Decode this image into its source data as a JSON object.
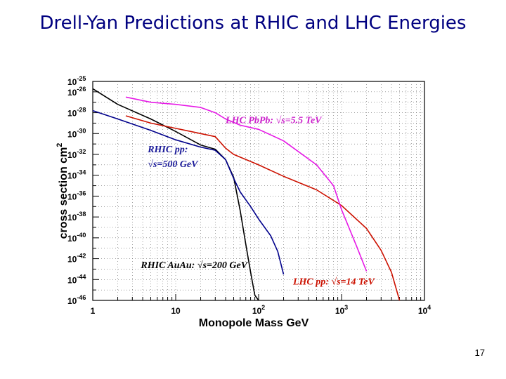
{
  "title": "Drell-Yan Predictions at RHIC and LHC  Energies",
  "page_number": "17",
  "chart_data": {
    "type": "line",
    "title": "",
    "xlabel": "Monopole Mass GeV",
    "ylabel": "cross section cm",
    "ylabel_superscript": "2",
    "x_scale": "log",
    "y_scale": "log",
    "xlim": [
      1,
      10000
    ],
    "ylim": [
      1e-46,
      1e-25
    ],
    "grid": true,
    "x_ticks": [
      {
        "base": "1",
        "exp": ""
      },
      {
        "base": "10",
        "exp": ""
      },
      {
        "base": "10",
        "exp": "2"
      },
      {
        "base": "10",
        "exp": "3"
      },
      {
        "base": "10",
        "exp": "4"
      }
    ],
    "y_ticks": [
      {
        "base": "10",
        "exp": "-25"
      },
      {
        "base": "10",
        "exp": "-26"
      },
      {
        "base": "10",
        "exp": "-28"
      },
      {
        "base": "10",
        "exp": "-30"
      },
      {
        "base": "10",
        "exp": "-32"
      },
      {
        "base": "10",
        "exp": "-34"
      },
      {
        "base": "10",
        "exp": "-36"
      },
      {
        "base": "10",
        "exp": "-38"
      },
      {
        "base": "10",
        "exp": "-40"
      },
      {
        "base": "10",
        "exp": "-42"
      },
      {
        "base": "10",
        "exp": "-44"
      },
      {
        "base": "10",
        "exp": "-46"
      }
    ],
    "series": [
      {
        "color": "#000000",
        "points": [
          [
            1,
            -25.7
          ],
          [
            2,
            -27.2
          ],
          [
            5,
            -28.6
          ],
          [
            10,
            -29.8
          ],
          [
            20,
            -31.1
          ],
          [
            30,
            -31.5
          ],
          [
            40,
            -32.5
          ],
          [
            50,
            -34.2
          ],
          [
            60,
            -37.4
          ],
          [
            70,
            -40.6
          ],
          [
            80,
            -43.3
          ],
          [
            90,
            -45.5
          ],
          [
            100,
            -46.0
          ]
        ]
      },
      {
        "color": "#00008b",
        "points": [
          [
            1,
            -27.8
          ],
          [
            2,
            -28.6
          ],
          [
            5,
            -29.7
          ],
          [
            10,
            -30.6
          ],
          [
            20,
            -31.3
          ],
          [
            30,
            -31.6
          ],
          [
            40,
            -32.5
          ],
          [
            50,
            -34.3
          ],
          [
            60,
            -35.6
          ],
          [
            80,
            -37.0
          ],
          [
            100,
            -38.2
          ],
          [
            140,
            -39.8
          ],
          [
            170,
            -41.3
          ],
          [
            200,
            -43.5
          ]
        ]
      },
      {
        "color": "#cc1100",
        "points": [
          [
            2.5,
            -28.3
          ],
          [
            5,
            -29.0
          ],
          [
            10,
            -29.5
          ],
          [
            20,
            -30.0
          ],
          [
            30,
            -30.3
          ],
          [
            40,
            -31.4
          ],
          [
            50,
            -32.0
          ],
          [
            100,
            -33.0
          ],
          [
            200,
            -34.1
          ],
          [
            500,
            -35.4
          ],
          [
            1000,
            -36.9
          ],
          [
            2000,
            -39.1
          ],
          [
            3000,
            -41.2
          ],
          [
            4000,
            -43.3
          ],
          [
            5000,
            -46.0
          ]
        ]
      },
      {
        "color": "#e619e6",
        "points": [
          [
            2.5,
            -26.5
          ],
          [
            5,
            -27.0
          ],
          [
            10,
            -27.2
          ],
          [
            20,
            -27.5
          ],
          [
            30,
            -28.0
          ],
          [
            40,
            -28.6
          ],
          [
            60,
            -29.2
          ],
          [
            100,
            -29.6
          ],
          [
            200,
            -30.7
          ],
          [
            500,
            -33.0
          ],
          [
            800,
            -35.0
          ],
          [
            1000,
            -37.3
          ],
          [
            1500,
            -40.7
          ],
          [
            2000,
            -43.2
          ]
        ]
      }
    ],
    "annotations": [
      {
        "text": "LHC PbPb: √s=5.5 TeV",
        "color": "#cc22cc",
        "x": 40,
        "y": -29.0
      },
      {
        "text": "RHIC pp:",
        "color": "#1a1a99",
        "x": 4.6,
        "y": -31.8
      },
      {
        "text": "√s=500 GeV",
        "color": "#1a1a99",
        "x": 4.6,
        "y": -33.2
      },
      {
        "text": "RHIC AuAu: √s=200 GeV",
        "color": "#000000",
        "x": 3.8,
        "y": -42.9
      },
      {
        "text": "LHC pp: √s=14 TeV",
        "color": "#cc1100",
        "x": 260,
        "y": -44.5
      }
    ]
  }
}
